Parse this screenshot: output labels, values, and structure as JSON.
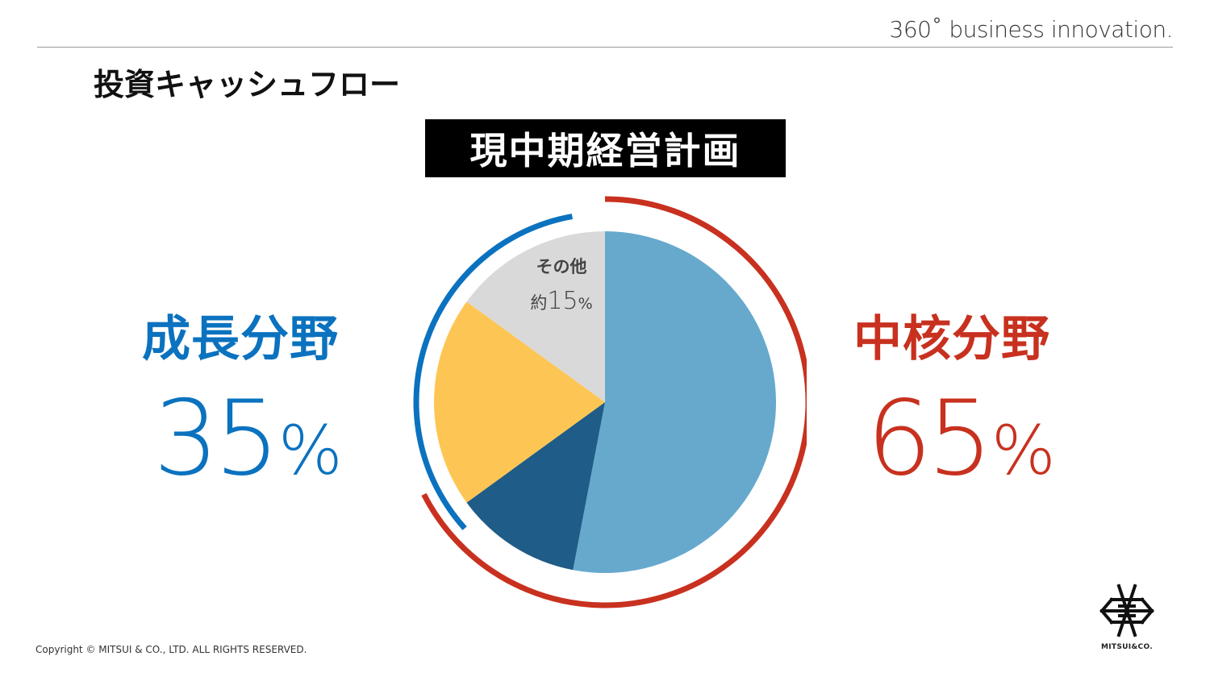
{
  "header": {
    "tagline": "360˚ business innovation.",
    "title": "投資キャッシュフロー"
  },
  "plan_label": "現中期経営計画",
  "growth": {
    "label": "成長分野",
    "value": "35",
    "unit": "%",
    "color": "#0b72bf"
  },
  "core": {
    "label": "中核分野",
    "value": "65",
    "unit": "%",
    "color": "#c8311f"
  },
  "chart_data": {
    "type": "pie",
    "title": "現中期経営計画",
    "slices": [
      {
        "value": 53,
        "color": "#66a9cd"
      },
      {
        "value": 12,
        "color": "#1f5c87"
      },
      {
        "value": 20,
        "color": "#fdc654"
      },
      {
        "name": "その他",
        "label": "約15%",
        "value": 15,
        "color": "#d9d9d9"
      }
    ],
    "groups": [
      {
        "name": "中核分野",
        "value": 65,
        "color": "#c8311f"
      },
      {
        "name": "成長分野",
        "value": 35,
        "color": "#0b72bf"
      }
    ],
    "annotation": {
      "line1": "その他",
      "prefix": "約",
      "value": "15",
      "unit": "%"
    }
  },
  "footer": {
    "copyright": "Copyright © MITSUI & CO., LTD. ALL RIGHTS RESERVED.",
    "logo_text": "MITSUI&CO."
  }
}
